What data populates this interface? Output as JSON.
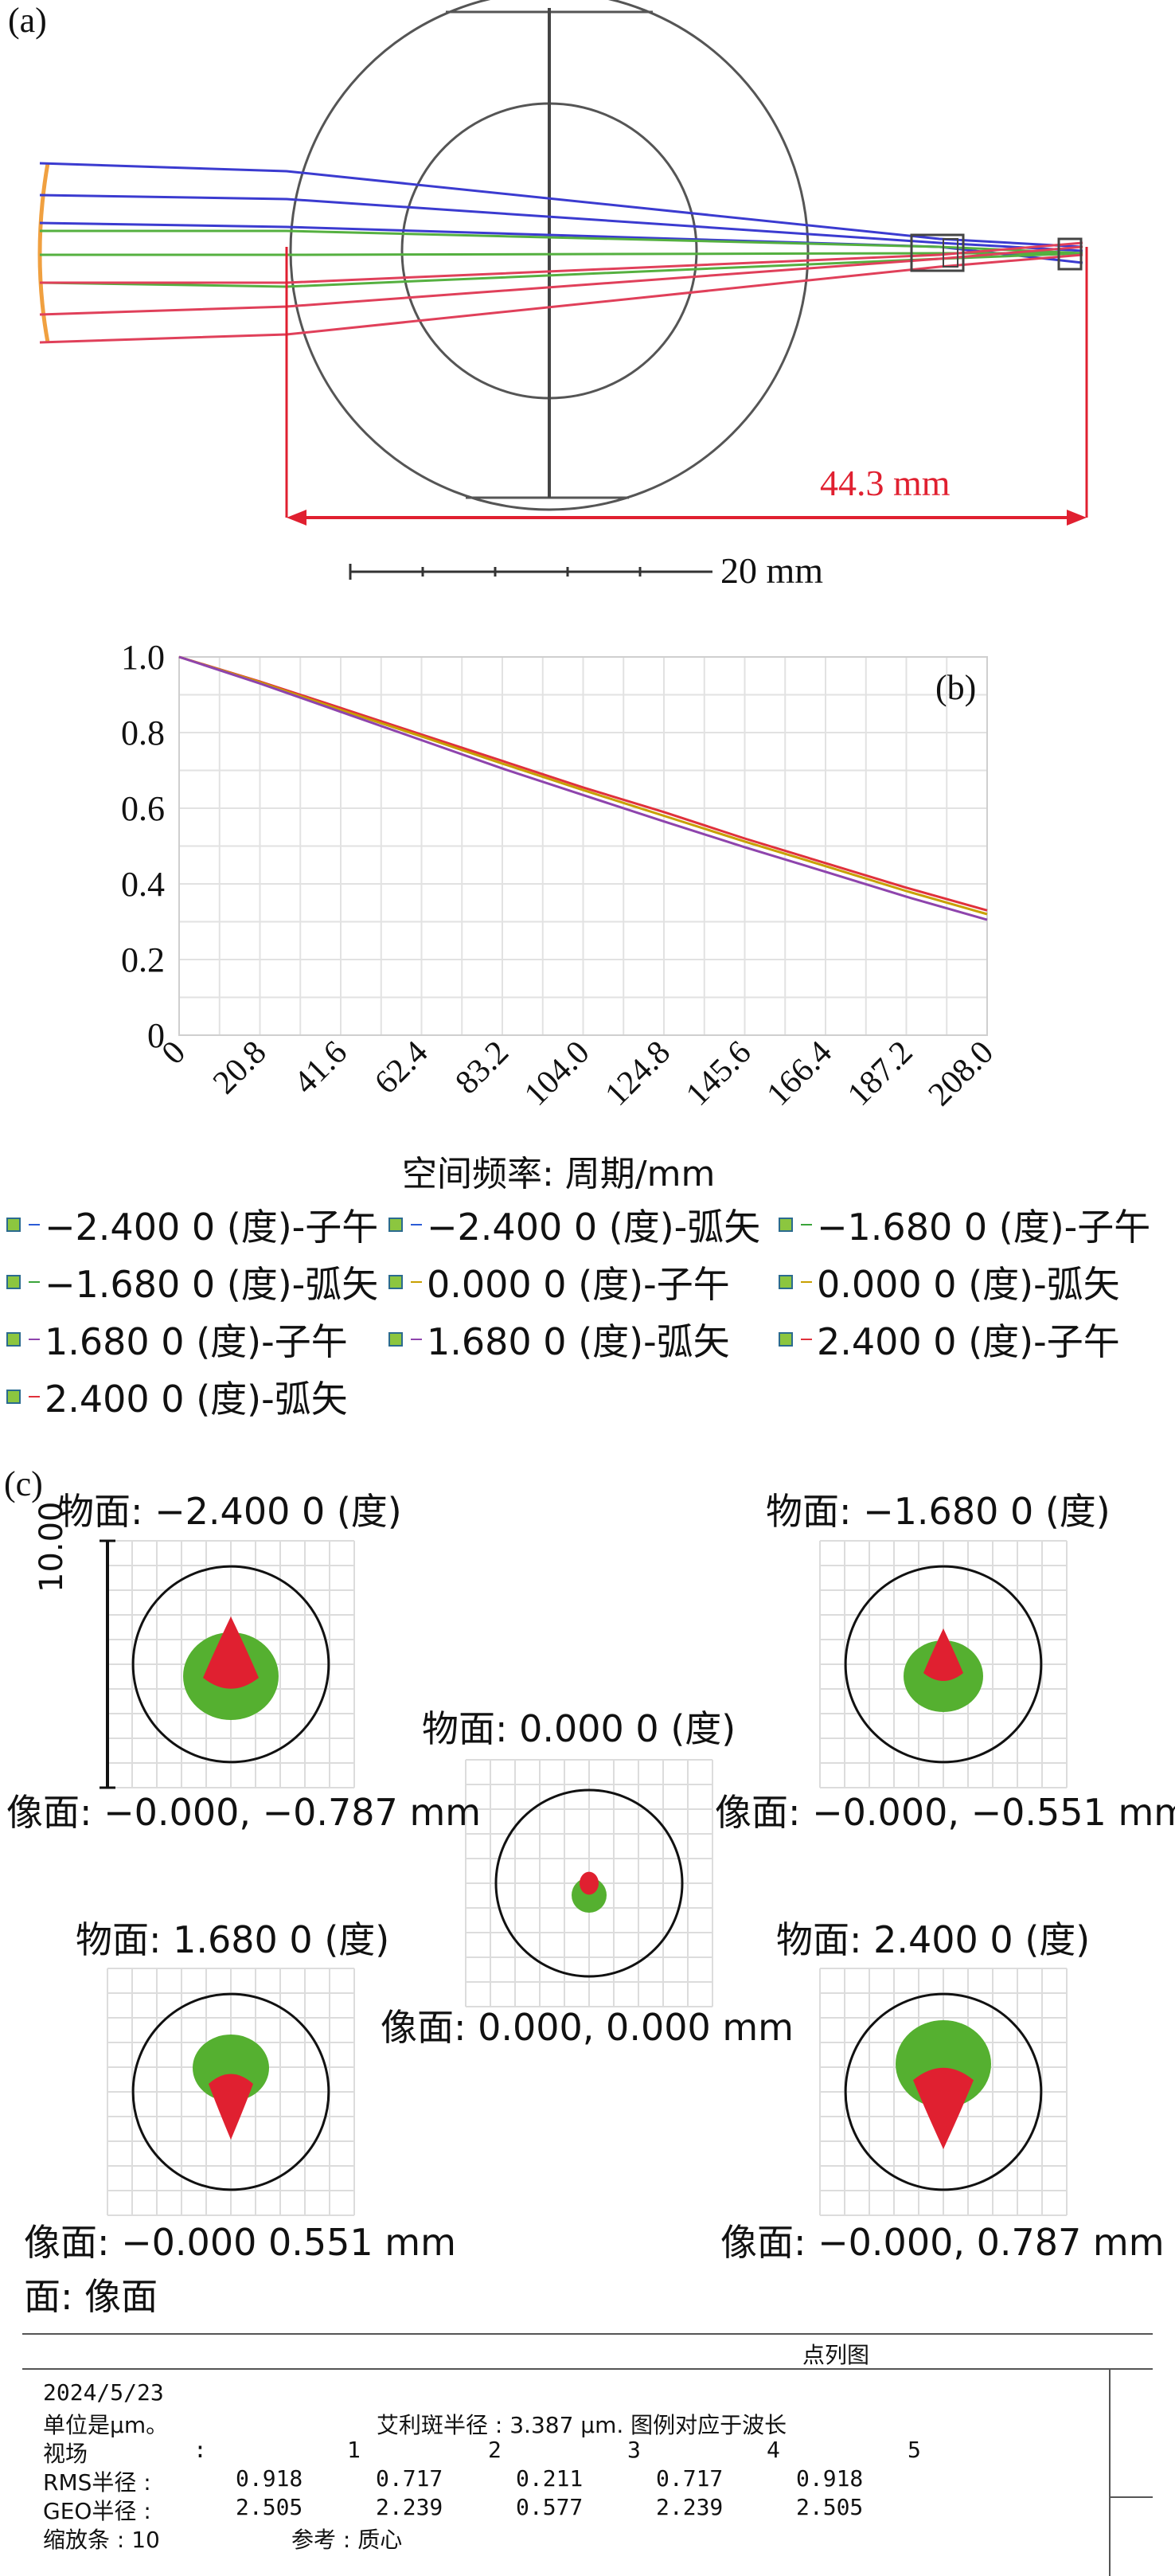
{
  "panel_a": {
    "label": "(a)",
    "length_label": "44.3 mm",
    "scale_label": "20 mm"
  },
  "panel_b": {
    "label": "(b)",
    "xlabel": "空间频率: 周期/mm",
    "legend": [
      "−2.400 0 (度)-子午",
      "−2.400 0 (度)-弧矢",
      "−1.680 0 (度)-子午",
      "−1.680 0 (度)-弧矢",
      "0.000 0 (度)-子午",
      "0.000 0 (度)-弧矢",
      "1.680 0 (度)-子午",
      "1.680 0 (度)-弧矢",
      "2.400 0 (度)-子午",
      "2.400 0 (度)-弧矢"
    ],
    "legend_colors": [
      "#2b5cd6",
      "#2b5cd6",
      "#3aa43a",
      "#3aa43a",
      "#c8a000",
      "#c8a000",
      "#8e44ad",
      "#8e44ad",
      "#e0313b",
      "#e0313b"
    ]
  },
  "chart_data": {
    "type": "line",
    "xlabel": "空间频率: 周期/mm",
    "ylabel": "",
    "xlim": [
      0,
      208.0
    ],
    "ylim": [
      0,
      1.0
    ],
    "x_ticks": [
      "0",
      "20.8",
      "41.6",
      "62.4",
      "83.2",
      "104.0",
      "124.8",
      "145.6",
      "166.4",
      "187.2",
      "208.0"
    ],
    "y_ticks": [
      "0",
      "0.2",
      "0.4",
      "0.6",
      "0.8",
      "1.0"
    ],
    "grid": true,
    "x": [
      0,
      20.8,
      41.6,
      62.4,
      83.2,
      104.0,
      124.8,
      145.6,
      166.4,
      187.2,
      208.0
    ],
    "series": [
      {
        "color": "#e0313b",
        "values": [
          1.0,
          0.935,
          0.865,
          0.795,
          0.725,
          0.655,
          0.59,
          0.52,
          0.455,
          0.39,
          0.33
        ]
      },
      {
        "color": "#c8a000",
        "values": [
          1.0,
          0.933,
          0.86,
          0.79,
          0.718,
          0.648,
          0.58,
          0.512,
          0.447,
          0.381,
          0.32
        ]
      },
      {
        "color": "#8e44ad",
        "values": [
          1.0,
          0.93,
          0.855,
          0.78,
          0.705,
          0.635,
          0.565,
          0.497,
          0.432,
          0.366,
          0.305
        ]
      }
    ]
  },
  "panel_c": {
    "label": "(c)",
    "scale_label": "10.00",
    "spots": [
      {
        "object": "物面: −2.400 0 (度)",
        "image": "像面: −0.000, −0.787 mm"
      },
      {
        "object": "物面: −1.680 0 (度)",
        "image": "像面: −0.000, −0.551 mm"
      },
      {
        "object": "物面: 0.000 0 (度)",
        "image": "像面: 0.000, 0.000 mm"
      },
      {
        "object": "物面: 1.680 0 (度)",
        "image": "像面: −0.000 0.551 mm"
      },
      {
        "object": "物面: 2.400 0 (度)",
        "image": "像面: −0.000, 0.787 mm"
      }
    ],
    "surface": "面: 像面"
  },
  "table": {
    "title": "点列图",
    "date": "2024/5/23",
    "unit": "单位是μm。",
    "airy": "艾利斑半径 : 3.387 μm. 图例对应于波长",
    "field_label": "视场",
    "fields": [
      "1",
      "2",
      "3",
      "4",
      "5"
    ],
    "rms_label": "RMS半径 :",
    "rms": [
      "0.918",
      "0.717",
      "0.211",
      "0.717",
      "0.918"
    ],
    "geo_label": "GEO半径 :",
    "geo": [
      "2.505",
      "2.239",
      "0.577",
      "2.239",
      "2.505"
    ],
    "scale_bar_label": "缩放条 : 10",
    "reference_label": "参考 : 质心"
  }
}
